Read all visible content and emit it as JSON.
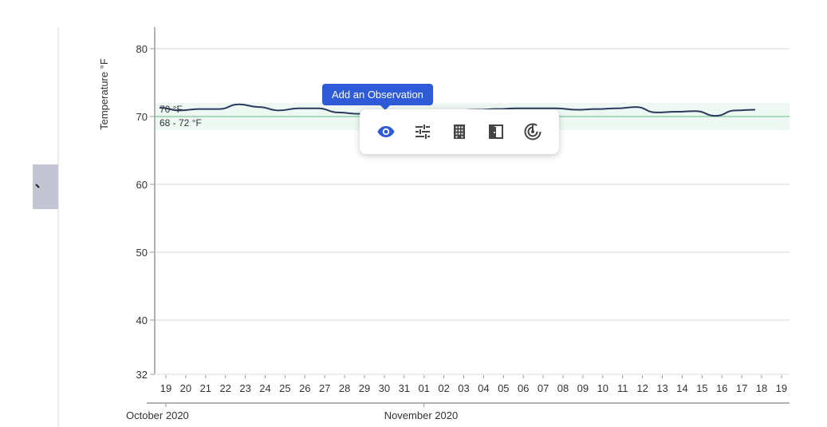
{
  "sidebar": {
    "collapse_tab_icon": "chevron-icon"
  },
  "tooltip": {
    "label": "Add an Observation"
  },
  "popup": {
    "actions": [
      {
        "name": "observation",
        "icon": "eye-icon",
        "active": true
      },
      {
        "name": "adjustments",
        "icon": "sliders-icon",
        "active": false
      },
      {
        "name": "building",
        "icon": "building-icon",
        "active": false
      },
      {
        "name": "door",
        "icon": "door-icon",
        "active": false
      },
      {
        "name": "sensor",
        "icon": "radar-icon",
        "active": false
      }
    ]
  },
  "colors": {
    "line": "#2b3a5e",
    "setpoint": "#8fd3a8",
    "band": "#eef8f3",
    "grid": "#e4e4e4",
    "axis": "#999999",
    "tooltip": "#2f5bd9",
    "active_icon": "#2f5bd9",
    "icon": "#444444"
  },
  "chart_data": {
    "type": "line",
    "title": "",
    "xlabel": "",
    "ylabel": "Temperature °F",
    "ylim": [
      32,
      83
    ],
    "yticks": [
      32,
      40,
      50,
      60,
      70,
      80
    ],
    "grid": true,
    "setpoint": {
      "value": 70,
      "label": "70 °F"
    },
    "band": {
      "low": 68,
      "high": 72,
      "label": "68 - 72 °F"
    },
    "x_ticks": [
      "19",
      "20",
      "21",
      "22",
      "23",
      "24",
      "25",
      "26",
      "27",
      "28",
      "29",
      "30",
      "31",
      "01",
      "02",
      "03",
      "04",
      "05",
      "06",
      "07",
      "08",
      "09",
      "10",
      "11",
      "12",
      "13",
      "14",
      "15",
      "16",
      "17",
      "18",
      "19"
    ],
    "x_month_labels": [
      {
        "label": "October 2020",
        "tick_index": 0
      },
      {
        "label": "November 2020",
        "tick_index": 13
      }
    ],
    "series": [
      {
        "name": "Temperature",
        "x": [
          "Oct 19",
          "Oct 20",
          "Oct 21",
          "Oct 22",
          "Oct 23",
          "Oct 24",
          "Oct 25",
          "Oct 26",
          "Oct 27",
          "Oct 28",
          "Oct 29",
          "Oct 30",
          "Oct 31",
          "Nov 01",
          "Nov 02",
          "Nov 03",
          "Nov 04",
          "Nov 05",
          "Nov 06",
          "Nov 07",
          "Nov 08",
          "Nov 09",
          "Nov 10",
          "Nov 11",
          "Nov 12",
          "Nov 13",
          "Nov 14",
          "Nov 15",
          "Nov 16",
          "Nov 17",
          "Nov 18"
        ],
        "values": [
          71.3,
          70.9,
          71.1,
          71.1,
          71.8,
          71.4,
          70.9,
          71.2,
          71.2,
          70.6,
          70.4,
          70.5,
          70.6,
          70.7,
          70.8,
          70.9,
          71.0,
          71.1,
          71.2,
          71.2,
          71.2,
          71.0,
          71.1,
          71.2,
          71.4,
          70.6,
          70.7,
          70.8,
          70.1,
          70.9,
          71.0
        ]
      }
    ]
  }
}
